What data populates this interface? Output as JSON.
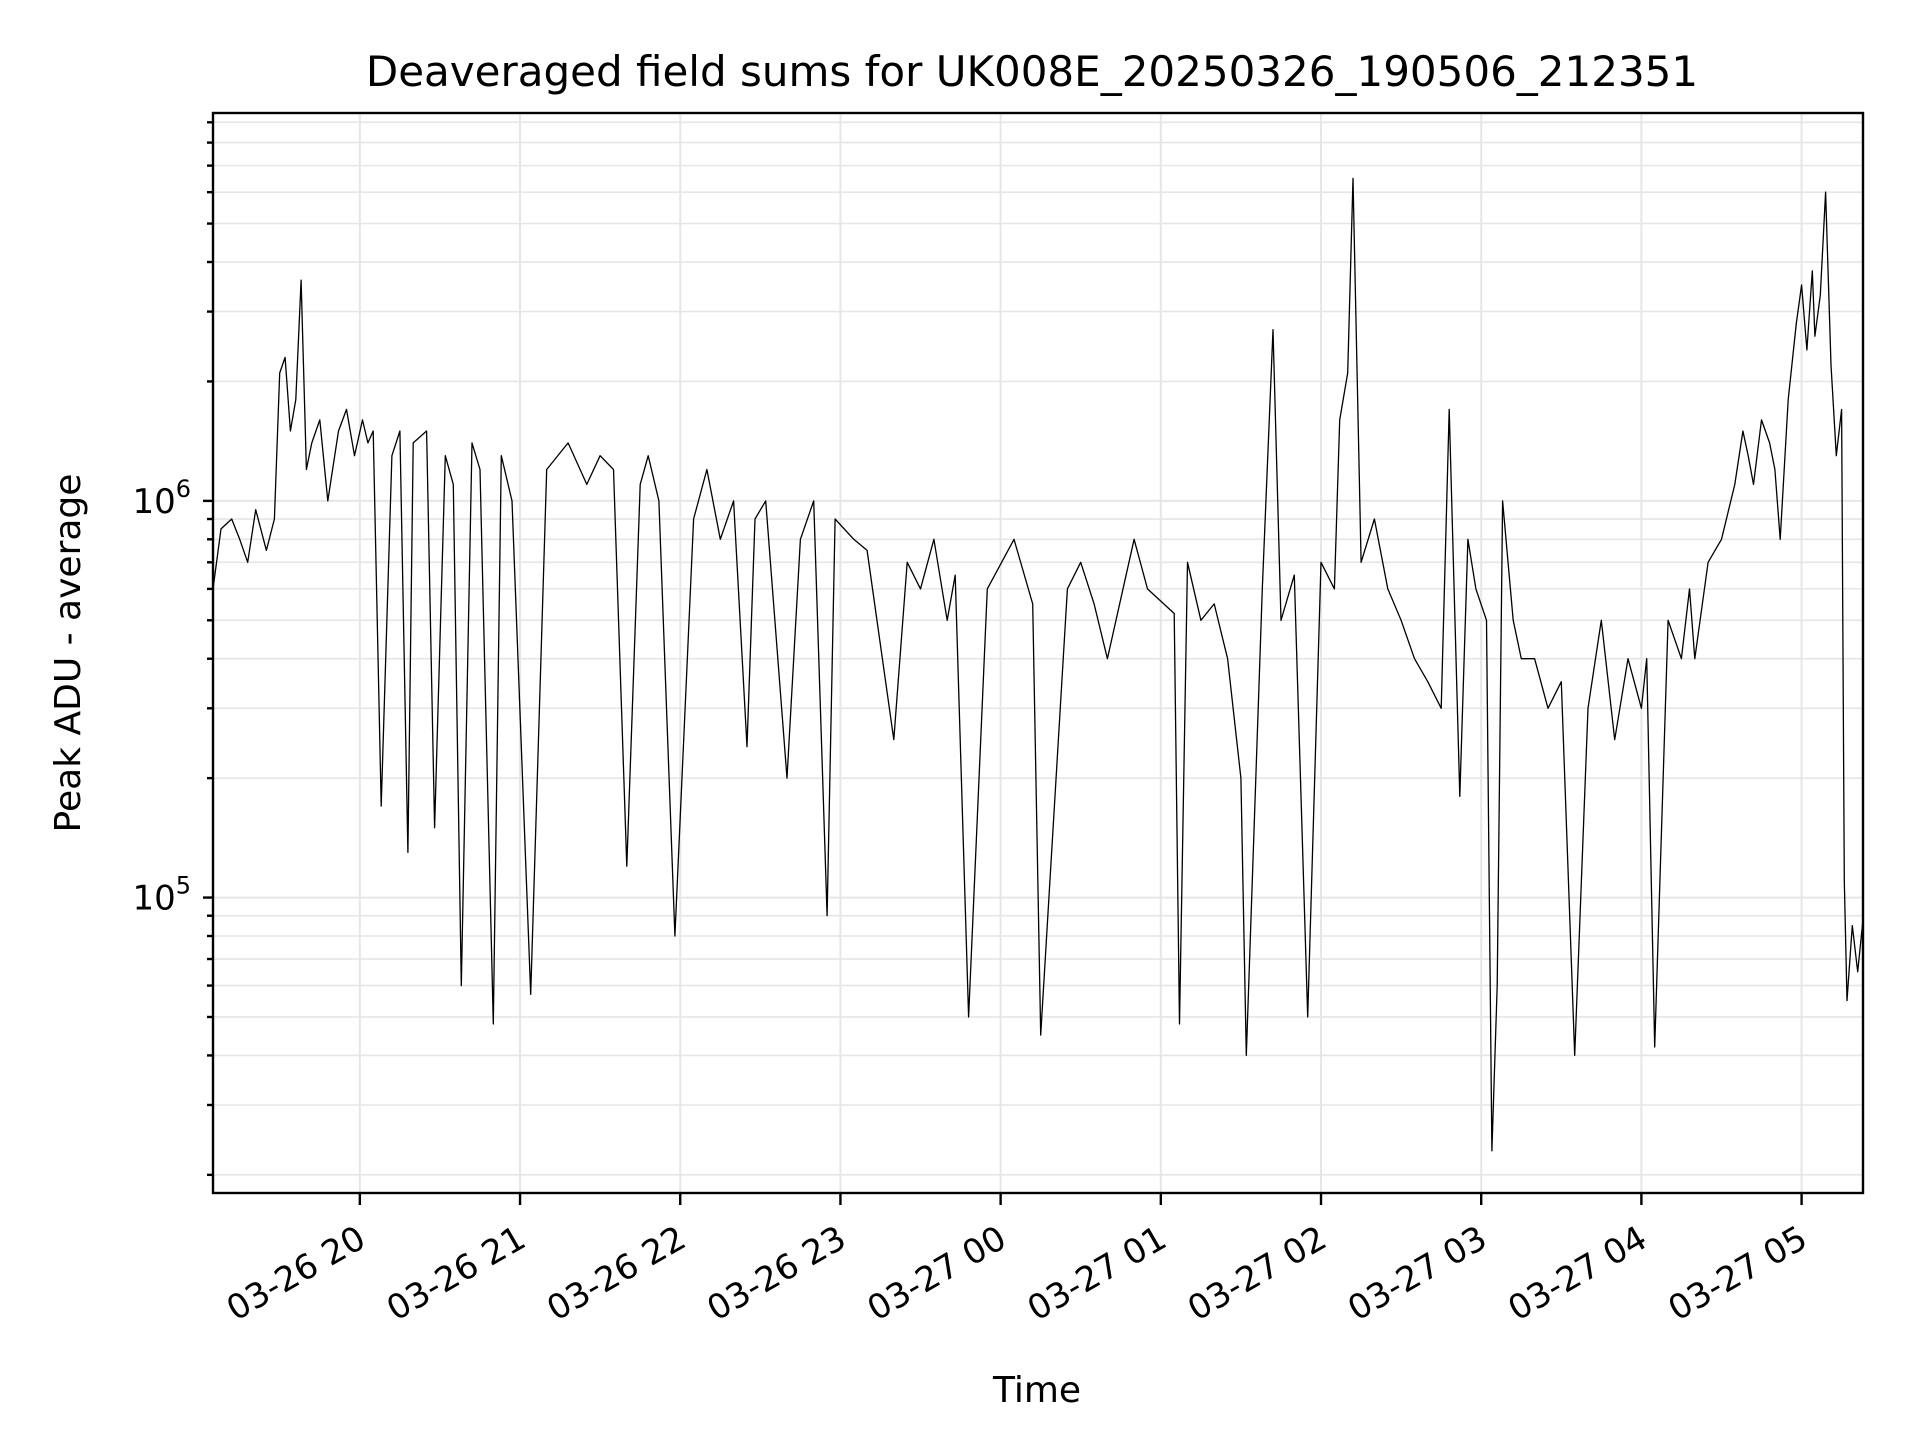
{
  "chart_data": {
    "type": "line",
    "title": "Deaveraged field sums for UK008E_20250326_190506_212351",
    "xlabel": "Time",
    "ylabel": "Peak ADU - average",
    "yscale": "log",
    "ylim": [
      18000,
      9500000
    ],
    "xlim": [
      "2025-03-26 19:05",
      "2025-03-27 05:23"
    ],
    "grid": true,
    "x_ticks": [
      "03-26 20",
      "03-26 21",
      "03-26 22",
      "03-26 23",
      "03-27 00",
      "03-27 01",
      "03-27 02",
      "03-27 03",
      "03-27 04",
      "03-27 05"
    ],
    "y_ticks": [
      {
        "value": 100000,
        "base": "10",
        "exp": "5"
      },
      {
        "value": 1000000,
        "base": "10",
        "exp": "6"
      }
    ],
    "series": [
      {
        "color": "#000000",
        "x": [
          "2025-03-26 19:05",
          "2025-03-26 19:08",
          "2025-03-26 19:12",
          "2025-03-26 19:15",
          "2025-03-26 19:18",
          "2025-03-26 19:21",
          "2025-03-26 19:25",
          "2025-03-26 19:28",
          "2025-03-26 19:30",
          "2025-03-26 19:32",
          "2025-03-26 19:34",
          "2025-03-26 19:36",
          "2025-03-26 19:38",
          "2025-03-26 19:40",
          "2025-03-26 19:42",
          "2025-03-26 19:45",
          "2025-03-26 19:48",
          "2025-03-26 19:52",
          "2025-03-26 19:55",
          "2025-03-26 19:58",
          "2025-03-26 20:01",
          "2025-03-26 20:03",
          "2025-03-26 20:05",
          "2025-03-26 20:08",
          "2025-03-26 20:12",
          "2025-03-26 20:15",
          "2025-03-26 20:18",
          "2025-03-26 20:20",
          "2025-03-26 20:25",
          "2025-03-26 20:28",
          "2025-03-26 20:32",
          "2025-03-26 20:35",
          "2025-03-26 20:38",
          "2025-03-26 20:42",
          "2025-03-26 20:45",
          "2025-03-26 20:50",
          "2025-03-26 20:53",
          "2025-03-26 20:57",
          "2025-03-26 21:04",
          "2025-03-26 21:10",
          "2025-03-26 21:18",
          "2025-03-26 21:25",
          "2025-03-26 21:30",
          "2025-03-26 21:35",
          "2025-03-26 21:40",
          "2025-03-26 21:45",
          "2025-03-26 21:48",
          "2025-03-26 21:52",
          "2025-03-26 21:58",
          "2025-03-26 22:05",
          "2025-03-26 22:10",
          "2025-03-26 22:15",
          "2025-03-26 22:20",
          "2025-03-26 22:25",
          "2025-03-26 22:28",
          "2025-03-26 22:32",
          "2025-03-26 22:40",
          "2025-03-26 22:45",
          "2025-03-26 22:50",
          "2025-03-26 22:55",
          "2025-03-26 22:58",
          "2025-03-26 23:05",
          "2025-03-26 23:10",
          "2025-03-26 23:20",
          "2025-03-26 23:25",
          "2025-03-26 23:30",
          "2025-03-26 23:35",
          "2025-03-26 23:40",
          "2025-03-26 23:43",
          "2025-03-26 23:48",
          "2025-03-26 23:55",
          "2025-03-27 00:05",
          "2025-03-27 00:12",
          "2025-03-27 00:15",
          "2025-03-27 00:25",
          "2025-03-27 00:30",
          "2025-03-27 00:35",
          "2025-03-27 00:40",
          "2025-03-27 00:50",
          "2025-03-27 00:55",
          "2025-03-27 01:05",
          "2025-03-27 01:07",
          "2025-03-27 01:10",
          "2025-03-27 01:15",
          "2025-03-27 01:20",
          "2025-03-27 01:25",
          "2025-03-27 01:30",
          "2025-03-27 01:32",
          "2025-03-27 01:38",
          "2025-03-27 01:42",
          "2025-03-27 01:45",
          "2025-03-27 01:50",
          "2025-03-27 01:55",
          "2025-03-27 02:00",
          "2025-03-27 02:05",
          "2025-03-27 02:07",
          "2025-03-27 02:10",
          "2025-03-27 02:12",
          "2025-03-27 02:15",
          "2025-03-27 02:20",
          "2025-03-27 02:25",
          "2025-03-27 02:30",
          "2025-03-27 02:35",
          "2025-03-27 02:40",
          "2025-03-27 02:45",
          "2025-03-27 02:48",
          "2025-03-27 02:52",
          "2025-03-27 02:55",
          "2025-03-27 02:58",
          "2025-03-27 03:02",
          "2025-03-27 03:04",
          "2025-03-27 03:06",
          "2025-03-27 03:08",
          "2025-03-27 03:12",
          "2025-03-27 03:15",
          "2025-03-27 03:20",
          "2025-03-27 03:25",
          "2025-03-27 03:30",
          "2025-03-27 03:35",
          "2025-03-27 03:40",
          "2025-03-27 03:45",
          "2025-03-27 03:50",
          "2025-03-27 03:55",
          "2025-03-27 04:00",
          "2025-03-27 04:02",
          "2025-03-27 04:05",
          "2025-03-27 04:10",
          "2025-03-27 04:15",
          "2025-03-27 04:18",
          "2025-03-27 04:20",
          "2025-03-27 04:25",
          "2025-03-27 04:30",
          "2025-03-27 04:35",
          "2025-03-27 04:38",
          "2025-03-27 04:40",
          "2025-03-27 04:42",
          "2025-03-27 04:45",
          "2025-03-27 04:48",
          "2025-03-27 04:50",
          "2025-03-27 04:52",
          "2025-03-27 04:55",
          "2025-03-27 04:58",
          "2025-03-27 05:00",
          "2025-03-27 05:02",
          "2025-03-27 05:04",
          "2025-03-27 05:05",
          "2025-03-27 05:07",
          "2025-03-27 05:09",
          "2025-03-27 05:11",
          "2025-03-27 05:13",
          "2025-03-27 05:15",
          "2025-03-27 05:16",
          "2025-03-27 05:17",
          "2025-03-27 05:19",
          "2025-03-27 05:21",
          "2025-03-27 05:23"
        ],
        "y": [
          600000,
          850000,
          900000,
          800000,
          700000,
          950000,
          750000,
          900000,
          2100000,
          2300000,
          1500000,
          1800000,
          3600000,
          1200000,
          1400000,
          1600000,
          1000000,
          1500000,
          1700000,
          1300000,
          1600000,
          1400000,
          1500000,
          170000,
          1300000,
          1500000,
          130000,
          1400000,
          1500000,
          150000,
          1300000,
          1100000,
          60000,
          1400000,
          1200000,
          48000,
          1300000,
          1000000,
          57000,
          1200000,
          1400000,
          1100000,
          1300000,
          1200000,
          120000,
          1100000,
          1300000,
          1000000,
          80000,
          900000,
          1200000,
          800000,
          1000000,
          240000,
          900000,
          1000000,
          200000,
          800000,
          1000000,
          90000,
          900000,
          800000,
          750000,
          250000,
          700000,
          600000,
          800000,
          500000,
          650000,
          50000,
          600000,
          800000,
          550000,
          45000,
          600000,
          700000,
          550000,
          400000,
          800000,
          600000,
          520000,
          48000,
          700000,
          500000,
          550000,
          400000,
          200000,
          40000,
          600000,
          2700000,
          500000,
          650000,
          50000,
          700000,
          600000,
          1600000,
          2100000,
          6500000,
          700000,
          900000,
          600000,
          500000,
          400000,
          350000,
          300000,
          1700000,
          180000,
          800000,
          600000,
          500000,
          23000,
          60000,
          1000000,
          500000,
          400000,
          400000,
          300000,
          350000,
          40000,
          300000,
          500000,
          250000,
          400000,
          300000,
          400000,
          42000,
          500000,
          400000,
          600000,
          400000,
          700000,
          800000,
          1100000,
          1500000,
          1300000,
          1100000,
          1600000,
          1400000,
          1200000,
          800000,
          1800000,
          2800000,
          3500000,
          2400000,
          3800000,
          2600000,
          3300000,
          6000000,
          2200000,
          1300000,
          1700000,
          110000,
          55000,
          85000,
          65000,
          88000
        ]
      }
    ]
  }
}
